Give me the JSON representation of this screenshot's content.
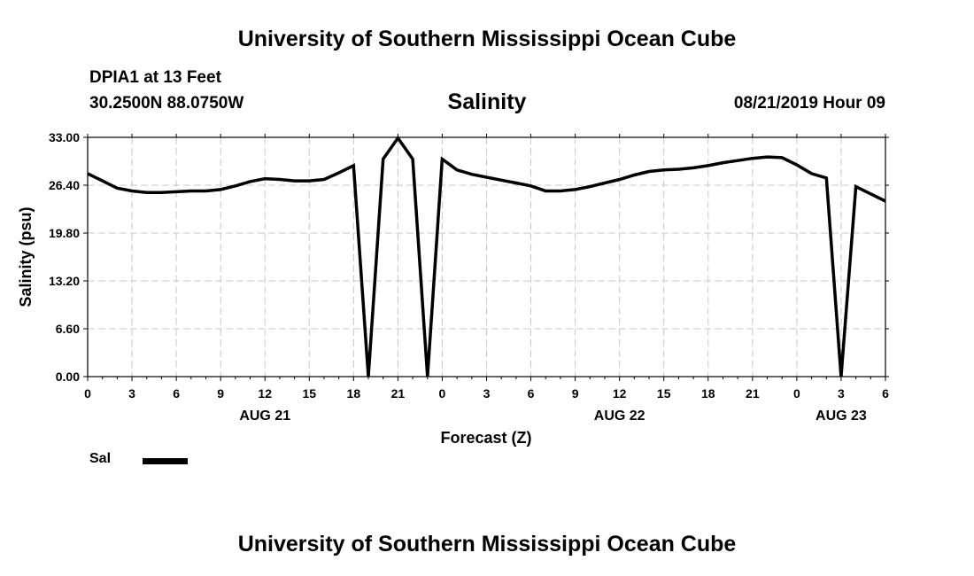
{
  "header": {
    "title_top": "University of Southern Mississippi Ocean Cube",
    "station": "DPIA1 at 13 Feet",
    "coords": "30.2500N 88.0750W",
    "run_time": "08/21/2019 Hour 09",
    "title_bottom": "University of Southern Mississippi Ocean Cube"
  },
  "legend": {
    "items": [
      {
        "label": "Sal",
        "color": "#000000"
      }
    ]
  },
  "chart_data": {
    "type": "line",
    "title": "Salinity",
    "ylabel": "Salinity (psu)",
    "xlabel": "Forecast (Z)",
    "ylim": [
      0,
      33
    ],
    "yticks": [
      "0.00",
      "6.60",
      "13.20",
      "19.80",
      "26.40",
      "33.00"
    ],
    "xlim": [
      0,
      54
    ],
    "xticks": [
      {
        "x": 0,
        "label": "0"
      },
      {
        "x": 3,
        "label": "3"
      },
      {
        "x": 6,
        "label": "6"
      },
      {
        "x": 9,
        "label": "9"
      },
      {
        "x": 12,
        "label": "12"
      },
      {
        "x": 15,
        "label": "15"
      },
      {
        "x": 18,
        "label": "18"
      },
      {
        "x": 21,
        "label": "21"
      },
      {
        "x": 24,
        "label": "0"
      },
      {
        "x": 27,
        "label": "3"
      },
      {
        "x": 30,
        "label": "6"
      },
      {
        "x": 33,
        "label": "9"
      },
      {
        "x": 36,
        "label": "12"
      },
      {
        "x": 39,
        "label": "15"
      },
      {
        "x": 42,
        "label": "18"
      },
      {
        "x": 45,
        "label": "21"
      },
      {
        "x": 48,
        "label": "0"
      },
      {
        "x": 51,
        "label": "3"
      },
      {
        "x": 54,
        "label": "6"
      }
    ],
    "date_labels": [
      {
        "x": 12,
        "label": "AUG 21"
      },
      {
        "x": 36,
        "label": "AUG 22"
      },
      {
        "x": 51,
        "label": "AUG 23"
      }
    ],
    "grid": true,
    "series": [
      {
        "name": "Sal",
        "color": "#000000",
        "x": [
          0,
          1,
          2,
          3,
          4,
          5,
          6,
          7,
          8,
          9,
          10,
          11,
          12,
          13,
          14,
          15,
          16,
          17,
          18,
          19,
          20,
          21,
          22,
          23,
          24,
          25,
          26,
          27,
          28,
          29,
          30,
          31,
          32,
          33,
          34,
          35,
          36,
          37,
          38,
          39,
          40,
          41,
          42,
          43,
          44,
          45,
          46,
          47,
          48,
          49,
          50,
          51,
          52,
          53,
          54
        ],
        "y": [
          28.0,
          27.0,
          26.0,
          25.6,
          25.4,
          25.4,
          25.5,
          25.6,
          25.6,
          25.8,
          26.3,
          26.9,
          27.3,
          27.2,
          27.0,
          27.0,
          27.2,
          28.1,
          29.1,
          0.0,
          30.0,
          32.9,
          30.0,
          0.0,
          30.0,
          28.5,
          27.9,
          27.5,
          27.1,
          26.7,
          26.3,
          25.6,
          25.6,
          25.8,
          26.2,
          26.7,
          27.2,
          27.8,
          28.3,
          28.5,
          28.6,
          28.8,
          29.1,
          29.5,
          29.8,
          30.1,
          30.3,
          30.2,
          29.2,
          28.0,
          27.4,
          0.0,
          26.2,
          25.2,
          24.2
        ]
      }
    ]
  }
}
